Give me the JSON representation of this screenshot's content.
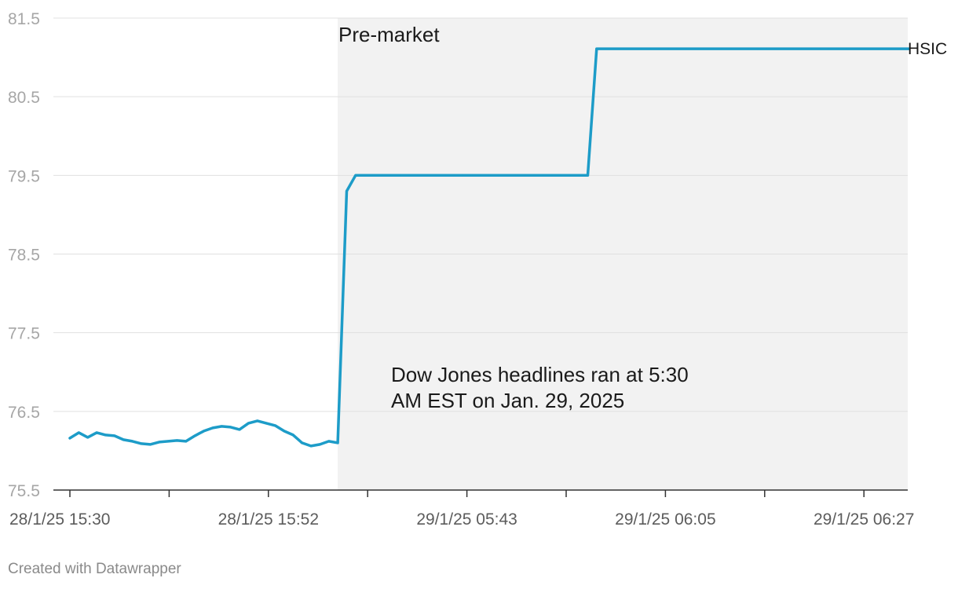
{
  "chart_data": {
    "type": "line",
    "y_ticks": [
      "75.5",
      "76.5",
      "77.5",
      "78.5",
      "79.5",
      "80.5",
      "81.5"
    ],
    "ylim": [
      75.5,
      81.5
    ],
    "grid": true,
    "x_tick_labels": [
      "28/1/25 15:30",
      "28/1/25 15:52",
      "29/1/25 05:43",
      "29/1/25 06:05",
      "29/1/25 06:27"
    ],
    "series": [
      {
        "name": "HSIC",
        "color": "#1d9cc8",
        "values": [
          76.16,
          76.23,
          76.17,
          76.23,
          76.2,
          76.19,
          76.14,
          76.12,
          76.09,
          76.08,
          76.11,
          76.12,
          76.13,
          76.12,
          76.19,
          76.25,
          76.29,
          76.31,
          76.3,
          76.27,
          76.35,
          76.38,
          76.35,
          76.32,
          76.25,
          76.2,
          76.1,
          76.06,
          76.08,
          76.12,
          76.1,
          79.3,
          79.5,
          79.5,
          79.5,
          79.5,
          79.5,
          79.5,
          79.5,
          79.5,
          79.5,
          79.5,
          79.5,
          79.5,
          79.5,
          79.5,
          79.5,
          79.5,
          79.5,
          79.5,
          79.5,
          79.5,
          79.5,
          79.5,
          79.5,
          79.5,
          79.5,
          79.5,
          79.5,
          81.11,
          81.11,
          81.11,
          81.11,
          81.11,
          81.11,
          81.11,
          81.11,
          81.11,
          81.11,
          81.11,
          81.11,
          81.11,
          81.11,
          81.11,
          81.11,
          81.11,
          81.11,
          81.11,
          81.11,
          81.11,
          81.11,
          81.11,
          81.11,
          81.11,
          81.11,
          81.11,
          81.11,
          81.11,
          81.11,
          81.11,
          81.11,
          81.11,
          81.11,
          81.11,
          81.11
        ]
      }
    ],
    "shaded_region_label": "Pre-market",
    "annotation": [
      "Dow Jones headlines ran at 5:30",
      "AM EST on Jan. 29, 2025"
    ]
  },
  "footer": "Created with Datawrapper"
}
